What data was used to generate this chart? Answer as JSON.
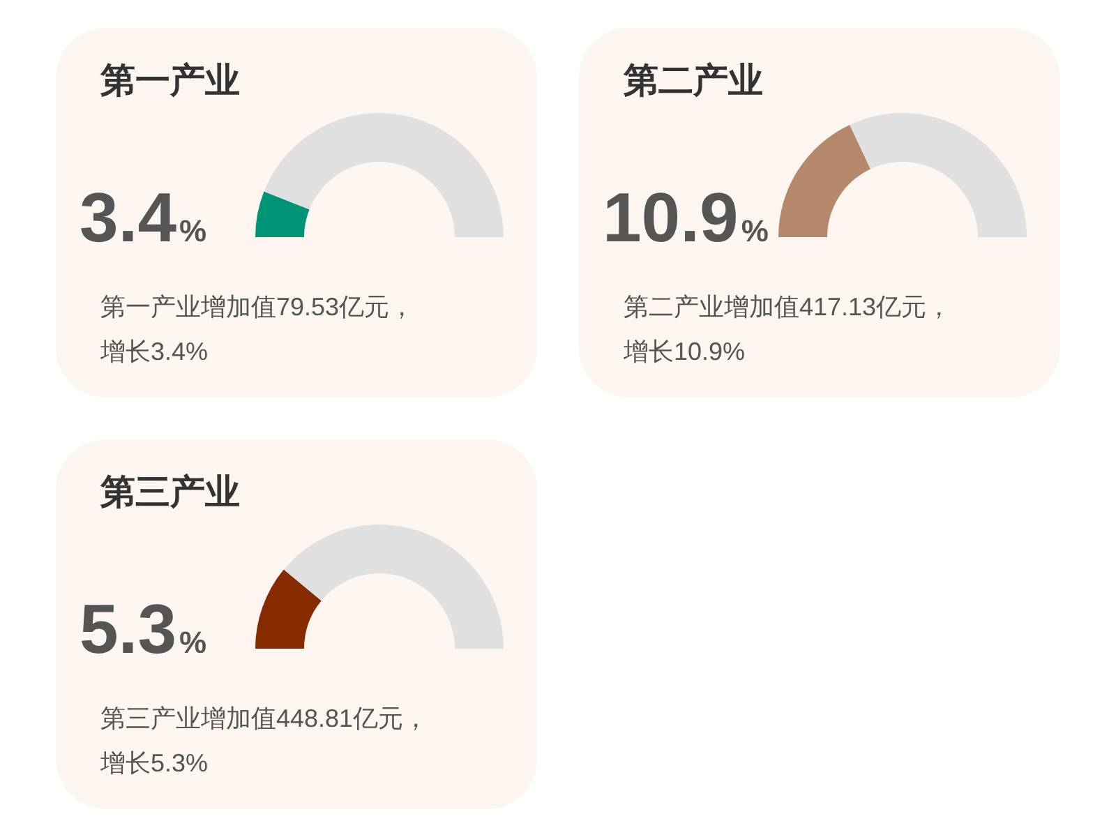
{
  "chart_data": [
    {
      "type": "donut",
      "title": "第一产业",
      "categories": [
        null,
        null
      ],
      "values": [
        12,
        88
      ],
      "colors": [
        "#009477",
        "#e0e0e0"
      ],
      "annotations": [
        "3.4%",
        "第一产业增加值79.53亿元，",
        "增长3.4%"
      ]
    },
    {
      "type": "donut",
      "title": "第二产业",
      "categories": [
        null,
        null
      ],
      "values": [
        36,
        64
      ],
      "colors": [
        "#b5876b",
        "#e0e0e0"
      ],
      "annotations": [
        "10.9%",
        "第二产业增加值417.13亿元，",
        "增长10.9%"
      ]
    },
    {
      "type": "donut",
      "title": "第三产业",
      "categories": [
        null,
        null
      ],
      "values": [
        22,
        78
      ],
      "colors": [
        "#862b00",
        "#e0e0e0"
      ],
      "annotations": [
        "5.3%",
        "第三产业增加值448.81亿元，",
        "增长5.3%"
      ]
    }
  ]
}
